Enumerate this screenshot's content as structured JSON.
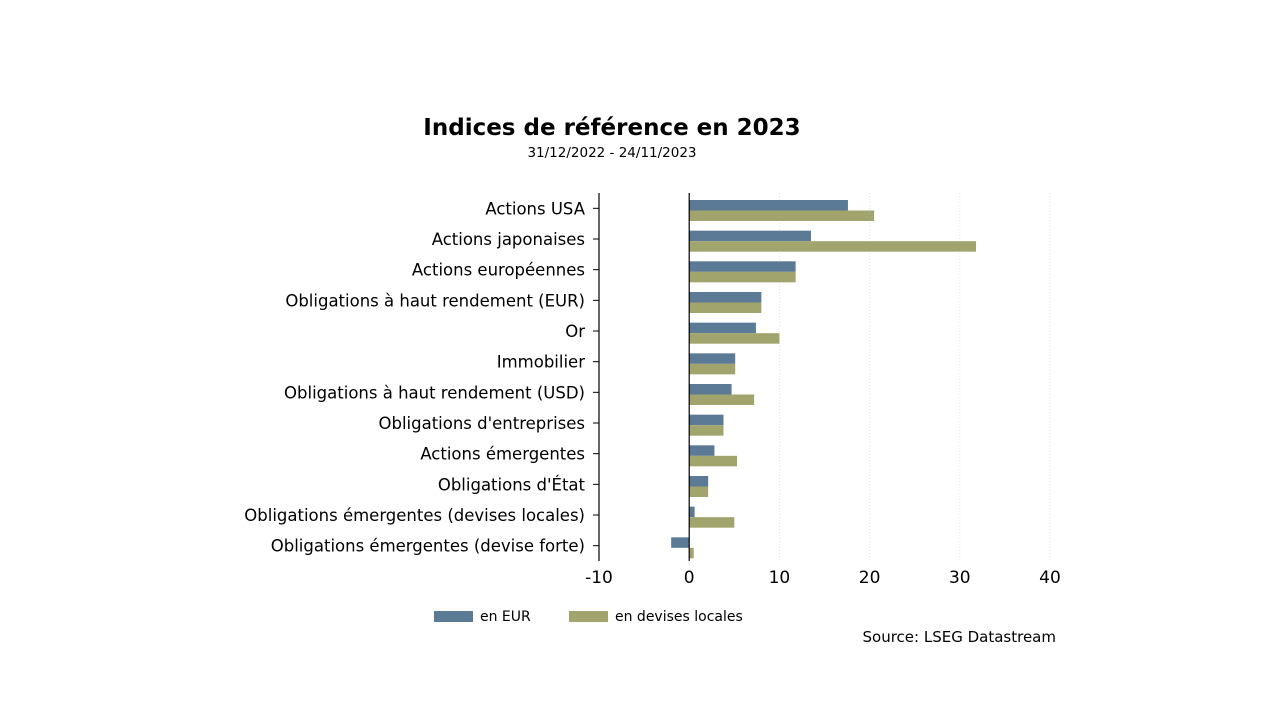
{
  "chart_data": {
    "type": "bar",
    "orientation": "horizontal",
    "title": "Indices de référence en 2023",
    "subtitle": "31/12/2022 - 24/11/2023",
    "source": "Source: LSEG Datastream",
    "categories": [
      "Actions USA",
      "Actions japonaises",
      "Actions européennes",
      "Obligations à haut rendement (EUR)",
      "Or",
      "Immobilier",
      "Obligations à haut rendement (USD)",
      "Obligations d'entreprises",
      "Actions émergentes",
      "Obligations d'État",
      "Obligations émergentes (devises locales)",
      "Obligations émergentes (devise forte)"
    ],
    "series": [
      {
        "name": "en EUR",
        "color": "#5b7a95",
        "values": [
          17.6,
          13.5,
          11.8,
          8.0,
          7.4,
          5.1,
          4.7,
          3.8,
          2.8,
          2.1,
          0.6,
          -2.0
        ]
      },
      {
        "name": "en devises locales",
        "color": "#a1a46d",
        "values": [
          20.5,
          31.8,
          11.8,
          8.0,
          10.0,
          5.1,
          7.2,
          3.8,
          5.3,
          2.1,
          5.0,
          0.5
        ]
      }
    ],
    "xlim": [
      -10,
      40
    ],
    "xticks": [
      "-10",
      "0",
      "10",
      "20",
      "30",
      "40"
    ],
    "grid": true,
    "legend_position": "bottom"
  }
}
